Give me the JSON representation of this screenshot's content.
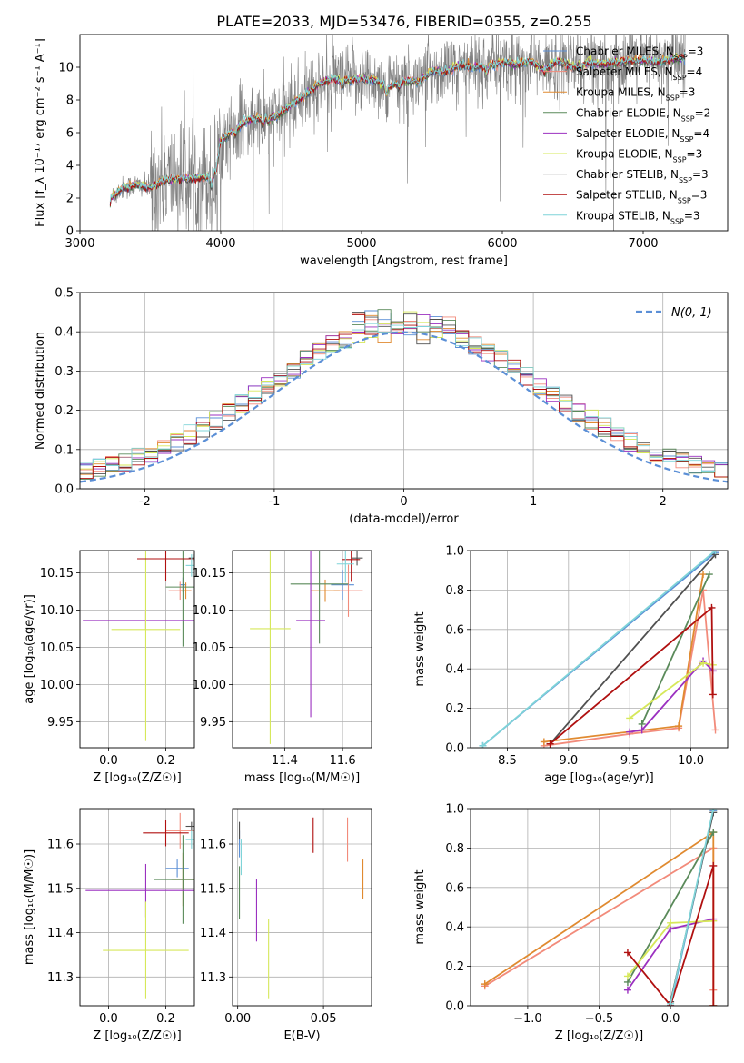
{
  "colors": {
    "chabrier_miles": "#5b8fd6",
    "salpeter_miles": "#f28b7b",
    "kroupa_miles": "#e08a30",
    "chabrier_elodie": "#5a8a5a",
    "salpeter_elodie": "#9b30c0",
    "kroupa_elodie": "#d6e85a",
    "chabrier_stelib": "#505050",
    "salpeter_stelib": "#b01010",
    "kroupa_stelib": "#7fd4d8",
    "data_spectrum": "#808080",
    "normal_curve": "#5b8fd6"
  },
  "chart_data": [
    {
      "id": "spectrum",
      "type": "line",
      "title": "PLATE=2033, MJD=53476, FIBERID=0355, z=0.255",
      "xlabel": "wavelength [Angstrom, rest frame]",
      "ylabel": "Flux [f_λ 10⁻¹⁷ erg cm⁻² s⁻¹ A⁻¹]",
      "xlim": [
        3000,
        7600
      ],
      "ylim": [
        0,
        12
      ],
      "xticks": [
        3000,
        4000,
        5000,
        6000,
        7000
      ],
      "yticks": [
        0,
        2,
        4,
        6,
        8,
        10
      ],
      "grid": false,
      "legend_position": "top-right",
      "legend": [
        {
          "label": "Chabrier MILES, N_SSP=3",
          "color": "chabrier_miles"
        },
        {
          "label": "Salpeter MILES, N_SSP=4",
          "color": "salpeter_miles"
        },
        {
          "label": "Kroupa MILES, N_SSP=3",
          "color": "kroupa_miles"
        },
        {
          "label": "Chabrier ELODIE, N_SSP=2",
          "color": "chabrier_elodie"
        },
        {
          "label": "Salpeter ELODIE, N_SSP=4",
          "color": "salpeter_elodie"
        },
        {
          "label": "Kroupa ELODIE, N_SSP=3",
          "color": "kroupa_elodie"
        },
        {
          "label": "Chabrier STELIB, N_SSP=3",
          "color": "chabrier_stelib"
        },
        {
          "label": "Salpeter STELIB, N_SSP=3",
          "color": "salpeter_stelib"
        },
        {
          "label": "Kroupa STELIB, N_SSP=3",
          "color": "kroupa_stelib"
        }
      ],
      "model_continuum": {
        "x": [
          3200,
          3220,
          3300,
          3400,
          3500,
          3600,
          3700,
          3800,
          3900,
          3950,
          4000,
          4100,
          4200,
          4300,
          4400,
          4500,
          4600,
          4700,
          4800,
          4900,
          5000,
          5100,
          5200,
          5300,
          5400,
          5500,
          5600,
          5700,
          5800,
          5900,
          6000,
          6100,
          6200,
          6300,
          6400,
          6500,
          6600,
          6700,
          6800,
          6900,
          7000,
          7100,
          7200,
          7300,
          7400
        ],
        "y": [
          0.6,
          2.0,
          2.6,
          2.8,
          2.6,
          3.1,
          3.2,
          3.2,
          3.3,
          3.6,
          5.5,
          6.2,
          6.8,
          6.9,
          7.0,
          7.7,
          8.3,
          9.0,
          9.3,
          9.2,
          9.3,
          9.2,
          8.8,
          9.2,
          9.1,
          9.8,
          9.7,
          10.1,
          10.0,
          10.1,
          10.3,
          10.2,
          10.4,
          9.8,
          10.4,
          10.0,
          10.3,
          10.2,
          10.3,
          10.4,
          10.4,
          10.3,
          10.5,
          10.6,
          10.5
        ]
      },
      "data_noise_amplitude": 1.2,
      "data_range": [
        3230,
        7300
      ]
    },
    {
      "id": "residuals",
      "type": "line",
      "xlabel": "(data-model)/error",
      "ylabel": "Normed distribution",
      "xlim": [
        -2.5,
        2.5
      ],
      "ylim": [
        0,
        0.5
      ],
      "xticks": [
        -2,
        -1,
        0,
        1,
        2
      ],
      "yticks": [
        0.0,
        0.1,
        0.2,
        0.3,
        0.4,
        0.5
      ],
      "grid": true,
      "legend_position": "top-right",
      "legend": [
        {
          "label": "N(0, 1)",
          "style": "dashed"
        }
      ],
      "histogram_bin_width": 0.1
    },
    {
      "id": "age-vs-z",
      "type": "scatter",
      "xlabel": "Z [log₁₀(Z/Z☉)]",
      "ylabel": "age [log₁₀(age/yr)]",
      "xlim": [
        -0.1,
        0.3
      ],
      "ylim": [
        9.915,
        10.18
      ],
      "xticks": [
        0.0,
        0.2
      ],
      "yticks": [
        9.95,
        10.0,
        10.05,
        10.1,
        10.15
      ],
      "grid": true,
      "points": [
        {
          "c": "chabrier_miles",
          "x": 0.26,
          "y": 10.134,
          "xe": 0.012,
          "ye": 0.01
        },
        {
          "c": "salpeter_miles",
          "x": 0.25,
          "y": 10.126,
          "xe": 0.04,
          "ye": 0.012
        },
        {
          "c": "kroupa_miles",
          "x": 0.27,
          "y": 10.126,
          "xe": 0.018,
          "ye": 0.011
        },
        {
          "c": "chabrier_elodie",
          "x": 0.26,
          "y": 10.131,
          "xe": 0.06,
          "ye": 0.08
        },
        {
          "c": "salpeter_elodie",
          "x": 0.13,
          "y": 10.086,
          "xe": 0.22,
          "ye": 0.012
        },
        {
          "c": "kroupa_elodie",
          "x": 0.13,
          "y": 10.074,
          "xe": 0.12,
          "ye": 0.15
        },
        {
          "c": "chabrier_stelib",
          "x": 0.3,
          "y": 10.17,
          "xe": 0.02,
          "ye": 0.005
        },
        {
          "c": "salpeter_stelib",
          "x": 0.2,
          "y": 10.169,
          "xe": 0.1,
          "ye": 0.03
        },
        {
          "c": "kroupa_stelib",
          "x": 0.29,
          "y": 10.16,
          "xe": 0.02,
          "ye": 0.015
        }
      ]
    },
    {
      "id": "age-vs-mass",
      "type": "scatter",
      "xlabel": "mass [log₁₀(M/M☉)]",
      "ylabel": "",
      "xlim": [
        11.22,
        11.7
      ],
      "ylim": [
        9.915,
        10.18
      ],
      "xticks": [
        11.4,
        11.6
      ],
      "yticks": [
        9.95,
        10.0,
        10.05,
        10.1,
        10.15
      ],
      "grid": true,
      "points": [
        {
          "c": "chabrier_miles",
          "x": 11.6,
          "y": 10.134,
          "xe": 0.04,
          "ye": 0.02
        },
        {
          "c": "salpeter_miles",
          "x": 11.62,
          "y": 10.126,
          "xe": 0.05,
          "ye": 0.035
        },
        {
          "c": "kroupa_miles",
          "x": 11.54,
          "y": 10.126,
          "xe": 0.05,
          "ye": 0.015
        },
        {
          "c": "chabrier_elodie",
          "x": 11.52,
          "y": 10.135,
          "xe": 0.1,
          "ye": 0.08
        },
        {
          "c": "salpeter_elodie",
          "x": 11.49,
          "y": 10.086,
          "xe": 0.05,
          "ye": 0.13
        },
        {
          "c": "kroupa_elodie",
          "x": 11.35,
          "y": 10.075,
          "xe": 0.07,
          "ye": 0.155
        },
        {
          "c": "chabrier_stelib",
          "x": 11.65,
          "y": 10.17,
          "xe": 0.02,
          "ye": 0.01
        },
        {
          "c": "salpeter_stelib",
          "x": 11.63,
          "y": 10.168,
          "xe": 0.03,
          "ye": 0.03
        },
        {
          "c": "kroupa_stelib",
          "x": 11.61,
          "y": 10.162,
          "xe": 0.03,
          "ye": 0.025
        }
      ]
    },
    {
      "id": "weight-vs-age",
      "type": "line",
      "xlabel": "age  [log₁₀(age/yr)]",
      "ylabel": "mass weight",
      "xlim": [
        8.2,
        10.3
      ],
      "ylim": [
        0,
        1.0
      ],
      "xticks": [
        8.5,
        9.0,
        9.5,
        10.0
      ],
      "yticks": [
        0.0,
        0.2,
        0.4,
        0.6,
        0.8,
        1.0
      ],
      "grid": true,
      "series": [
        {
          "c": "chabrier_miles",
          "x": [
            8.3,
            10.2
          ],
          "y": [
            0.01,
            0.99
          ]
        },
        {
          "c": "salpeter_miles",
          "x": [
            8.8,
            9.5,
            9.9,
            10.1,
            10.2
          ],
          "y": [
            0.01,
            0.07,
            0.1,
            0.8,
            0.09
          ]
        },
        {
          "c": "kroupa_miles",
          "x": [
            8.8,
            9.9,
            10.1
          ],
          "y": [
            0.03,
            0.11,
            0.88
          ]
        },
        {
          "c": "chabrier_elodie",
          "x": [
            9.6,
            10.15
          ],
          "y": [
            0.12,
            0.88
          ]
        },
        {
          "c": "salpeter_elodie",
          "x": [
            9.5,
            9.6,
            10.1,
            10.18
          ],
          "y": [
            0.08,
            0.09,
            0.44,
            0.39
          ]
        },
        {
          "c": "kroupa_elodie",
          "x": [
            9.5,
            10.1,
            10.18
          ],
          "y": [
            0.15,
            0.43,
            0.42
          ]
        },
        {
          "c": "chabrier_stelib",
          "x": [
            8.85,
            10.2
          ],
          "y": [
            0.02,
            0.98
          ]
        },
        {
          "c": "salpeter_stelib",
          "x": [
            8.85,
            10.17,
            10.18
          ],
          "y": [
            0.02,
            0.71,
            0.27
          ]
        },
        {
          "c": "kroupa_stelib",
          "x": [
            8.3,
            10.2
          ],
          "y": [
            0.01,
            1.0
          ]
        }
      ]
    },
    {
      "id": "mass-vs-z",
      "type": "scatter",
      "xlabel": "Z [log₁₀(Z/Z☉)]",
      "ylabel": "mass [log₁₀(M/M☉)]",
      "xlim": [
        -0.1,
        0.3
      ],
      "ylim": [
        11.235,
        11.68
      ],
      "xticks": [
        0.0,
        0.2
      ],
      "yticks": [
        11.3,
        11.4,
        11.5,
        11.6
      ],
      "grid": true,
      "points": [
        {
          "c": "chabrier_miles",
          "x": 0.24,
          "y": 11.545,
          "xe": 0.04,
          "ye": 0.02
        },
        {
          "c": "salpeter_miles",
          "x": 0.25,
          "y": 11.63,
          "xe": 0.05,
          "ye": 0.04
        },
        {
          "c": "kroupa_miles",
          "x": 0.26,
          "y": 11.52,
          "xe": 0.04,
          "ye": 0.06
        },
        {
          "c": "chabrier_elodie",
          "x": 0.26,
          "y": 11.52,
          "xe": 0.1,
          "ye": 0.1
        },
        {
          "c": "salpeter_elodie",
          "x": 0.13,
          "y": 11.495,
          "xe": 0.21,
          "ye": 0.06
        },
        {
          "c": "kroupa_elodie",
          "x": 0.13,
          "y": 11.36,
          "xe": 0.15,
          "ye": 0.11
        },
        {
          "c": "chabrier_stelib",
          "x": 0.29,
          "y": 11.64,
          "xe": 0.02,
          "ye": 0.01
        },
        {
          "c": "salpeter_stelib",
          "x": 0.2,
          "y": 11.625,
          "xe": 0.08,
          "ye": 0.03
        },
        {
          "c": "kroupa_stelib",
          "x": 0.29,
          "y": 11.61,
          "xe": 0.02,
          "ye": 0.02
        }
      ]
    },
    {
      "id": "mass-vs-ebv",
      "type": "scatter",
      "xlabel": "E(B-V)",
      "ylabel": "",
      "xlim": [
        -0.003,
        0.078
      ],
      "ylim": [
        11.235,
        11.68
      ],
      "xticks": [
        0.0,
        0.05
      ],
      "yticks": [
        11.3,
        11.4,
        11.5,
        11.6
      ],
      "grid": true,
      "points": [
        {
          "c": "chabrier_miles",
          "x": 0.001,
          "y": 11.6,
          "xe": 0,
          "ye": 0.03
        },
        {
          "c": "salpeter_miles",
          "x": 0.064,
          "y": 11.61,
          "xe": 0,
          "ye": 0.05
        },
        {
          "c": "kroupa_miles",
          "x": 0.073,
          "y": 11.52,
          "xe": 0,
          "ye": 0.045
        },
        {
          "c": "chabrier_elodie",
          "x": 0.001,
          "y": 11.49,
          "xe": 0,
          "ye": 0.06
        },
        {
          "c": "salpeter_elodie",
          "x": 0.011,
          "y": 11.45,
          "xe": 0,
          "ye": 0.07
        },
        {
          "c": "kroupa_elodie",
          "x": 0.018,
          "y": 11.34,
          "xe": 0,
          "ye": 0.09
        },
        {
          "c": "chabrier_stelib",
          "x": 0.001,
          "y": 11.63,
          "xe": 0,
          "ye": 0.02
        },
        {
          "c": "salpeter_stelib",
          "x": 0.044,
          "y": 11.62,
          "xe": 0,
          "ye": 0.04
        },
        {
          "c": "kroupa_stelib",
          "x": 0.002,
          "y": 11.57,
          "xe": 0,
          "ye": 0.04
        }
      ]
    },
    {
      "id": "weight-vs-z",
      "type": "line",
      "xlabel": "Z [log₁₀(Z/Z☉)]",
      "ylabel": "mass weight",
      "xlim": [
        -1.4,
        0.4
      ],
      "ylim": [
        0,
        1.0
      ],
      "xticks": [
        -1.0,
        -0.5,
        0.0
      ],
      "yticks": [
        0.0,
        0.2,
        0.4,
        0.6,
        0.8,
        1.0
      ],
      "grid": true,
      "series": [
        {
          "c": "chabrier_miles",
          "x": [
            0.0,
            0.3
          ],
          "y": [
            0.0,
            0.99
          ]
        },
        {
          "c": "salpeter_miles",
          "x": [
            -1.3,
            0.3,
            0.3
          ],
          "y": [
            0.1,
            0.8,
            0.08
          ]
        },
        {
          "c": "kroupa_miles",
          "x": [
            -1.3,
            0.3,
            0.3
          ],
          "y": [
            0.11,
            0.88,
            0.0
          ]
        },
        {
          "c": "chabrier_elodie",
          "x": [
            -0.3,
            0.3
          ],
          "y": [
            0.12,
            0.88
          ]
        },
        {
          "c": "salpeter_elodie",
          "x": [
            -0.3,
            0.0,
            0.3
          ],
          "y": [
            0.08,
            0.39,
            0.44
          ]
        },
        {
          "c": "kroupa_elodie",
          "x": [
            -0.3,
            0.0,
            0.3
          ],
          "y": [
            0.15,
            0.42,
            0.43
          ]
        },
        {
          "c": "chabrier_stelib",
          "x": [
            0.0,
            0.3
          ],
          "y": [
            0.02,
            0.98
          ]
        },
        {
          "c": "salpeter_stelib",
          "x": [
            -0.3,
            0.0,
            0.3,
            0.3
          ],
          "y": [
            0.27,
            0.0,
            0.71,
            0.0
          ]
        },
        {
          "c": "kroupa_stelib",
          "x": [
            0.0,
            0.3
          ],
          "y": [
            0.01,
            1.0
          ]
        }
      ]
    }
  ]
}
